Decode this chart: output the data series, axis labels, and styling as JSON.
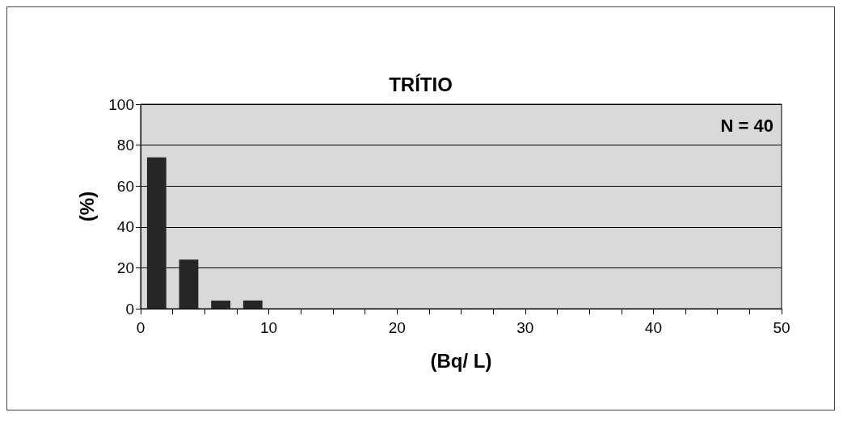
{
  "chart_data": {
    "type": "histogram",
    "title": "TRÍTIO",
    "xlabel": "(Bq/ L)",
    "ylabel": "(%)",
    "annotations": [
      "N = 40"
    ],
    "bins": [
      0,
      2.5,
      5,
      7.5,
      10,
      12.5,
      15,
      17.5,
      20,
      22.5,
      25,
      27.5,
      30,
      32.5,
      35,
      37.5,
      40,
      42.5,
      45,
      47.5,
      50
    ],
    "values": [
      74,
      24,
      4,
      4,
      0,
      0,
      0,
      0,
      0,
      0,
      0,
      0,
      0,
      0,
      0,
      0,
      0,
      0,
      0,
      0
    ],
    "color": "#262626",
    "xlim": [
      0,
      50
    ],
    "xticks": [
      0,
      {
        "value": 2.5,
        "label": null
      },
      {
        "value": 5,
        "label": null
      },
      {
        "value": 7.5,
        "label": null
      },
      10,
      {
        "value": 12.5,
        "label": null
      },
      {
        "value": 15,
        "label": null
      },
      {
        "value": 17.5,
        "label": null
      },
      20,
      {
        "value": 22.5,
        "label": null
      },
      {
        "value": 25,
        "label": null
      },
      {
        "value": 27.5,
        "label": null
      },
      30,
      {
        "value": 32.5,
        "label": null
      },
      {
        "value": 35,
        "label": null
      },
      {
        "value": 37.5,
        "label": null
      },
      40,
      {
        "value": 42.5,
        "label": null
      },
      {
        "value": 45,
        "label": null
      },
      {
        "value": 47.5,
        "label": null
      },
      50
    ],
    "ylim": [
      0,
      100
    ],
    "yticks": [
      0,
      20,
      40,
      60,
      80,
      100
    ],
    "grid": "y"
  }
}
